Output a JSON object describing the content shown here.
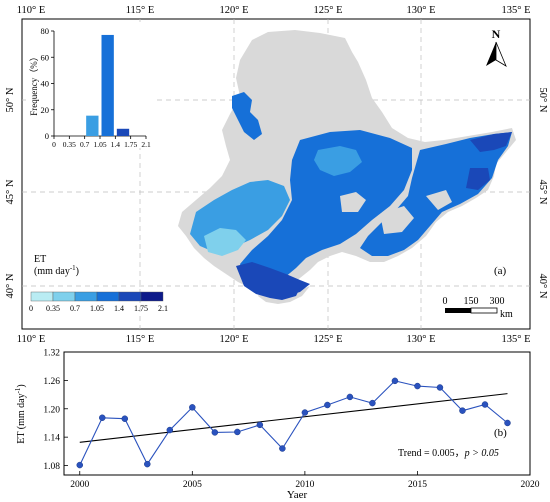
{
  "map_panel": {
    "panel_label": "(a)",
    "top_lon_labels": [
      "110° E",
      "115° E",
      "120° E",
      "125° E",
      "130° E",
      "135° E"
    ],
    "bottom_lon_labels": [
      "110° E",
      "115° E",
      "120° E",
      "125° E",
      "130° E",
      "135° E"
    ],
    "left_lat_labels": [
      "50° N",
      "45° N",
      "40° N"
    ],
    "right_lat_labels": [
      "50° N",
      "45° N",
      "40° N"
    ],
    "north_arrow": {
      "letter": "N",
      "icon": "north-arrow-icon"
    },
    "scale_bar": {
      "ticks": [
        "0",
        "150",
        "300"
      ],
      "unit": "km"
    },
    "legend": {
      "title_line1": "ET",
      "title_line2_base": "(mm day",
      "title_line2_sup": "-1",
      "title_line2_end": ")",
      "ticks": [
        "0",
        "0.35",
        "0.7",
        "1.05",
        "1.4",
        "1.75",
        "2.1"
      ],
      "colors": [
        "#b9ecf3",
        "#7fd0ec",
        "#3a9ee3",
        "#1670d8",
        "#1a48b8",
        "#0d1a8a"
      ]
    },
    "colors": {
      "land": "#d9d9d9",
      "sea": "#ffffff",
      "grid": "#bdbdbd"
    }
  },
  "chart_data": [
    {
      "type": "bar",
      "ylabel": "Frequency（%）",
      "categories": [
        "0–0.35",
        "0.35–0.7",
        "0.7–1.05",
        "1.05–1.4",
        "1.4–1.75",
        "1.75–2.1"
      ],
      "values": [
        0,
        0,
        15.5,
        77,
        5.5,
        0
      ],
      "bar_colors": [
        "#b9ecf3",
        "#7fd0ec",
        "#3a9ee3",
        "#1670d8",
        "#1a48b8",
        "#0d1a8a"
      ],
      "x_tick_labels": [
        "0",
        "0.35",
        "0.7",
        "1.05",
        "1.4",
        "1.75",
        "2.1"
      ],
      "x_ticks": [
        0,
        0.35,
        0.7,
        1.05,
        1.4,
        1.75,
        2.1
      ],
      "xlim": [
        0,
        2.1
      ],
      "ylim": [
        0,
        80
      ],
      "y_ticks": [
        0,
        20,
        40,
        60,
        80
      ],
      "y_tick_labels": [
        "0",
        "20",
        "40",
        "60",
        "80"
      ]
    },
    {
      "type": "line",
      "panel_label": "(b)",
      "xlabel": "Yaer",
      "ylabel": "ET (mm day",
      "ylabel_sup": "-1",
      "ylabel_end": ")",
      "x": [
        2000,
        2001,
        2002,
        2003,
        2004,
        2005,
        2006,
        2007,
        2008,
        2009,
        2010,
        2011,
        2012,
        2013,
        2014,
        2015,
        2016,
        2017,
        2018,
        2019
      ],
      "series": [
        {
          "values": [
            1.081,
            1.181,
            1.179,
            1.083,
            1.155,
            1.203,
            1.15,
            1.151,
            1.166,
            1.116,
            1.192,
            1.208,
            1.225,
            1.212,
            1.259,
            1.248,
            1.245,
            1.196,
            1.209,
            1.17
          ],
          "color": "#2a52be"
        }
      ],
      "trend_line": {
        "start": [
          2000,
          1.129
        ],
        "end": [
          2019,
          1.232
        ]
      },
      "trend_text": "Trend = 0.005，",
      "trend_p": "p > 0.05",
      "xlim": [
        1999.3,
        2020
      ],
      "ylim": [
        1.06,
        1.32
      ],
      "x_ticks": [
        2000,
        2005,
        2010,
        2015,
        2020
      ],
      "x_tick_labels": [
        "2000",
        "2005",
        "2010",
        "2015",
        "2020"
      ],
      "y_ticks": [
        1.08,
        1.14,
        1.2,
        1.26,
        1.32
      ],
      "y_tick_labels": [
        "1.08",
        "1.14",
        "1.20",
        "1.26",
        "1.32"
      ]
    }
  ]
}
